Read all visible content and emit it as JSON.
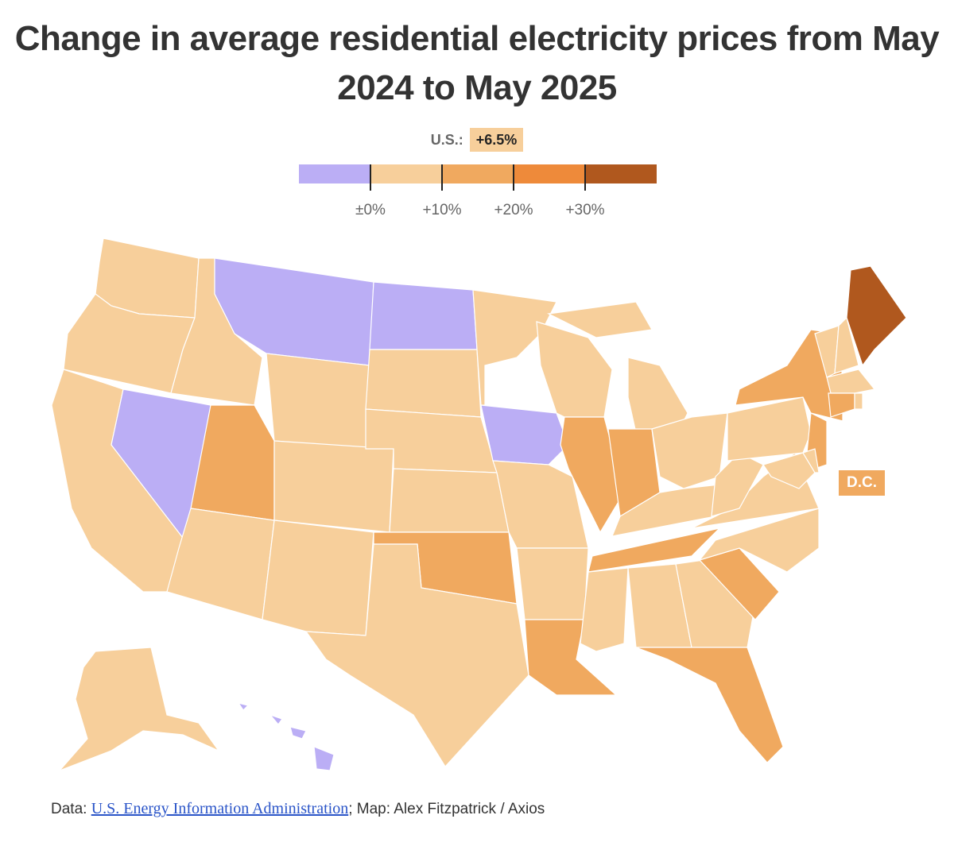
{
  "title": "Change in average residential electricity prices from May 2024 to May 2025",
  "us_summary": {
    "label": "U.S.:",
    "value": "+6.5%"
  },
  "legend": {
    "bins": [
      {
        "range": "below ±0%",
        "color": "#bbaef5"
      },
      {
        "range": "±0% to +10%",
        "color": "#f7cf9b"
      },
      {
        "range": "+10% to +20%",
        "color": "#f0a95f"
      },
      {
        "range": "+20% to +30%",
        "color": "#ee8a3a"
      },
      {
        "range": "above +30%",
        "color": "#b0581e"
      }
    ],
    "ticks": [
      "±0%",
      "+10%",
      "+20%",
      "+30%"
    ]
  },
  "states": {
    "WA": 1,
    "OR": 1,
    "CA": 1,
    "NV": 0,
    "ID": 1,
    "MT": 0,
    "WY": 1,
    "UT": 2,
    "CO": 1,
    "AZ": 1,
    "NM": 1,
    "ND": 0,
    "SD": 1,
    "NE": 1,
    "KS": 1,
    "OK": 2,
    "TX": 1,
    "MN": 1,
    "IA": 0,
    "MO": 1,
    "AR": 1,
    "LA": 2,
    "WI": 1,
    "IL": 2,
    "MI": 1,
    "IN": 2,
    "OH": 1,
    "KY": 1,
    "TN": 2,
    "MS": 1,
    "AL": 1,
    "GA": 1,
    "FL": 2,
    "SC": 2,
    "NC": 1,
    "VA": 1,
    "WV": 1,
    "PA": 1,
    "NY": 2,
    "NJ": 2,
    "MD": 1,
    "DE": 1,
    "VT": 1,
    "NH": 1,
    "ME": 4,
    "MA": 1,
    "CT": 2,
    "RI": 1,
    "AK": 1,
    "HI": 0
  },
  "dc_label": "D.C.",
  "dc_bin": 2,
  "footer": {
    "data_prefix": "Data: ",
    "source_link": "U.S. Energy Information Administration",
    "credit": "; Map: Alex Fitzpatrick / Axios"
  }
}
